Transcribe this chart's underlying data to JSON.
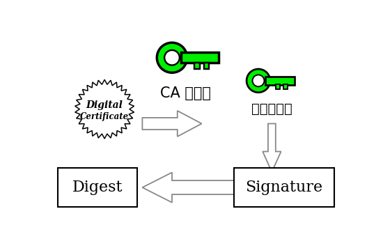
{
  "bg_color": "#ffffff",
  "green_fill": "#00ee00",
  "green_edge": "#000000",
  "arrow_fc": "#f8f8f8",
  "arrow_ec": "#999999",
  "ca_label": "CA 的公鑰",
  "bao_label": "鲑勃的公鑰",
  "digest_label": "Digest",
  "signature_label": "Signature",
  "badge_text1": "Digital",
  "badge_text2": "Certificate"
}
